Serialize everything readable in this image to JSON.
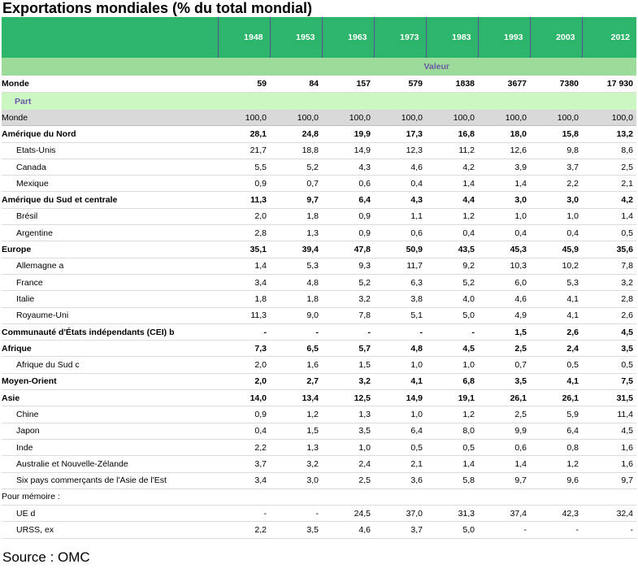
{
  "title": "Exportations mondiales (% du total mondial)",
  "source": "Source : OMC",
  "years": [
    "1948",
    "1953",
    "1963",
    "1973",
    "1983",
    "1993",
    "2003",
    "2012"
  ],
  "valeur_label": "Valeur",
  "part_label": "Part",
  "valeur_row": {
    "label": "Monde",
    "values": [
      "59",
      "84",
      "157",
      "579",
      "1838",
      "3677",
      "7380",
      "17 930"
    ]
  },
  "rows": [
    {
      "label": "Monde",
      "values": [
        "100,0",
        "100,0",
        "100,0",
        "100,0",
        "100,0",
        "100,0",
        "100,0",
        "100,0"
      ],
      "style": "gray"
    },
    {
      "label": "Amérique du Nord",
      "values": [
        "28,1",
        "24,8",
        "19,9",
        "17,3",
        "16,8",
        "18,0",
        "15,8",
        "13,2"
      ],
      "style": "bold"
    },
    {
      "label": "Etats-Unis",
      "values": [
        "21,7",
        "18,8",
        "14,9",
        "12,3",
        "11,2",
        "12,6",
        "9,8",
        "8,6"
      ],
      "style": "sub"
    },
    {
      "label": "Canada",
      "values": [
        "5,5",
        "5,2",
        "4,3",
        "4,6",
        "4,2",
        "3,9",
        "3,7",
        "2,5"
      ],
      "style": "sub"
    },
    {
      "label": "Mexique",
      "values": [
        "0,9",
        "0,7",
        "0,6",
        "0,4",
        "1,4",
        "1,4",
        "2,2",
        "2,1"
      ],
      "style": "sub"
    },
    {
      "label": "Amérique du Sud et centrale",
      "values": [
        "11,3",
        "9,7",
        "6,4",
        "4,3",
        "4,4",
        "3,0",
        "3,0",
        "4,2"
      ],
      "style": "bold"
    },
    {
      "label": "Brésil",
      "values": [
        "2,0",
        "1,8",
        "0,9",
        "1,1",
        "1,2",
        "1,0",
        "1,0",
        "1,4"
      ],
      "style": "sub"
    },
    {
      "label": "Argentine",
      "values": [
        "2,8",
        "1,3",
        "0,9",
        "0,6",
        "0,4",
        "0,4",
        "0,4",
        "0,5"
      ],
      "style": "sub"
    },
    {
      "label": "Europe",
      "values": [
        "35,1",
        "39,4",
        "47,8",
        "50,9",
        "43,5",
        "45,3",
        "45,9",
        "35,6"
      ],
      "style": "bold"
    },
    {
      "label": "Allemagne  a",
      "values": [
        "1,4",
        "5,3",
        "9,3",
        "11,7",
        "9,2",
        "10,3",
        "10,2",
        "7,8"
      ],
      "style": "sub"
    },
    {
      "label": "France",
      "values": [
        "3,4",
        "4,8",
        "5,2",
        "6,3",
        "5,2",
        "6,0",
        "5,3",
        "3,2"
      ],
      "style": "sub"
    },
    {
      "label": "Italie",
      "values": [
        "1,8",
        "1,8",
        "3,2",
        "3,8",
        "4,0",
        "4,6",
        "4,1",
        "2,8"
      ],
      "style": "sub"
    },
    {
      "label": "Royaume-Uni",
      "values": [
        "11,3",
        "9,0",
        "7,8",
        "5,1",
        "5,0",
        "4,9",
        "4,1",
        "2,6"
      ],
      "style": "sub"
    },
    {
      "label": "Communauté d'États indépendants (CEI) b",
      "values": [
        "-",
        "-",
        "-",
        "-",
        "-",
        "1,5",
        "2,6",
        "4,5"
      ],
      "style": "bold"
    },
    {
      "label": "Afrique",
      "values": [
        "7,3",
        "6,5",
        "5,7",
        "4,8",
        "4,5",
        "2,5",
        "2,4",
        "3,5"
      ],
      "style": "bold"
    },
    {
      "label": "Afrique du Sud  c",
      "values": [
        "2,0",
        "1,6",
        "1,5",
        "1,0",
        "1,0",
        "0,7",
        "0,5",
        "0,5"
      ],
      "style": "sub"
    },
    {
      "label": "Moyen-Orient",
      "values": [
        "2,0",
        "2,7",
        "3,2",
        "4,1",
        "6,8",
        "3,5",
        "4,1",
        "7,5"
      ],
      "style": "bold"
    },
    {
      "label": "Asie",
      "values": [
        "14,0",
        "13,4",
        "12,5",
        "14,9",
        "19,1",
        "26,1",
        "26,1",
        "31,5"
      ],
      "style": "bold"
    },
    {
      "label": "Chine",
      "values": [
        "0,9",
        "1,2",
        "1,3",
        "1,0",
        "1,2",
        "2,5",
        "5,9",
        "11,4"
      ],
      "style": "sub"
    },
    {
      "label": "Japon",
      "values": [
        "0,4",
        "1,5",
        "3,5",
        "6,4",
        "8,0",
        "9,9",
        "6,4",
        "4,5"
      ],
      "style": "sub"
    },
    {
      "label": "Inde",
      "values": [
        "2,2",
        "1,3",
        "1,0",
        "0,5",
        "0,5",
        "0,6",
        "0,8",
        "1,6"
      ],
      "style": "sub"
    },
    {
      "label": "Australie et Nouvelle-Zélande",
      "values": [
        "3,7",
        "3,2",
        "2,4",
        "2,1",
        "1,4",
        "1,4",
        "1,2",
        "1,6"
      ],
      "style": "sub"
    },
    {
      "label": "Six pays commerçants de l'Asie de l'Est",
      "values": [
        "3,4",
        "3,0",
        "2,5",
        "3,6",
        "5,8",
        "9,7",
        "9,6",
        "9,7"
      ],
      "style": "sub"
    },
    {
      "label": "Pour mémoire :",
      "values": [
        "",
        "",
        "",
        "",
        "",
        "",
        "",
        ""
      ],
      "style": "plain"
    },
    {
      "label": "UE  d",
      "values": [
        "-",
        "-",
        "24,5",
        "37,0",
        "31,3",
        "37,4",
        "42,3",
        "32,4"
      ],
      "style": "sub"
    },
    {
      "label": "URSS, ex",
      "values": [
        "2,2",
        "3,5",
        "4,6",
        "3,7",
        "5,0",
        "-",
        "-",
        "-"
      ],
      "style": "sub"
    }
  ]
}
